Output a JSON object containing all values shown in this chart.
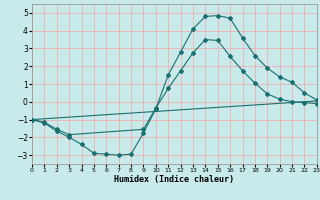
{
  "xlabel": "Humidex (Indice chaleur)",
  "xlim": [
    0,
    23
  ],
  "ylim": [
    -3.5,
    5.5
  ],
  "yticks": [
    -3,
    -2,
    -1,
    0,
    1,
    2,
    3,
    4,
    5
  ],
  "xticks": [
    0,
    1,
    2,
    3,
    4,
    5,
    6,
    7,
    8,
    9,
    10,
    11,
    12,
    13,
    14,
    15,
    16,
    17,
    18,
    19,
    20,
    21,
    22,
    23
  ],
  "background_color": "#c8eaea",
  "grid_color": "#e8b8b8",
  "line_color": "#1a7070",
  "line1_x": [
    0,
    1,
    2,
    3,
    4,
    5,
    6,
    7,
    8,
    9,
    10,
    11,
    12,
    13,
    14,
    15,
    16,
    17,
    18,
    19,
    20,
    21,
    22,
    23
  ],
  "line1_y": [
    -1.0,
    -1.2,
    -1.65,
    -2.0,
    -2.4,
    -2.9,
    -2.95,
    -3.0,
    -2.95,
    -1.75,
    -0.4,
    1.5,
    2.8,
    4.1,
    4.8,
    4.85,
    4.7,
    3.6,
    2.6,
    1.9,
    1.4,
    1.1,
    0.5,
    0.1
  ],
  "line2_x": [
    0,
    1,
    2,
    3,
    9,
    10,
    11,
    12,
    13,
    14,
    15,
    16,
    17,
    18,
    19,
    20,
    21,
    22,
    23
  ],
  "line2_y": [
    -1.0,
    -1.15,
    -1.55,
    -1.85,
    -1.55,
    -0.35,
    0.75,
    1.75,
    2.75,
    3.5,
    3.45,
    2.55,
    1.75,
    1.05,
    0.45,
    0.15,
    0.0,
    -0.05,
    -0.1
  ],
  "line3_x": [
    0,
    23
  ],
  "line3_y": [
    -1.0,
    0.05
  ]
}
